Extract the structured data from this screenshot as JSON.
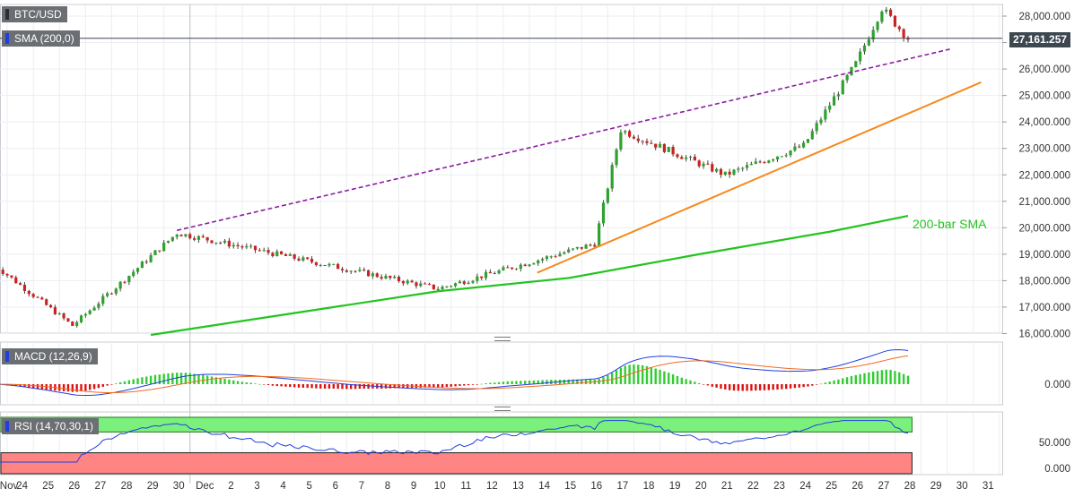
{
  "colors": {
    "candle_up": "#2ea12e",
    "candle_down": "#cc2222",
    "sma_line": "#22c41e",
    "channel_top": "#8a1e9e",
    "support": "#f58a1f",
    "macd_line": "#1f3fe0",
    "signal_line": "#f26b1d",
    "rsi_line": "#1f3fe0",
    "overbought_zone": "#7cf07c",
    "oversold_zone": "#ff8484",
    "price_line": "#3d4750"
  },
  "legend": {
    "symbol": "BTC/USD",
    "sma": "SMA (200,0)",
    "macd": "MACD (12,26,9)",
    "rsi": "RSI (14,70,30,1)"
  },
  "current_price": "27,161.257",
  "sma_annotation": "200-bar SMA",
  "chart_data": [
    {
      "type": "candlestick",
      "title": "BTC/USD",
      "y_ticks": [
        "28,000.000",
        "27,000.000",
        "26,000.000",
        "25,000.000",
        "24,000.000",
        "23,000.000",
        "22,000.000",
        "21,000.000",
        "20,000.000",
        "19,000.000",
        "18,000.000",
        "17,000.000",
        "16,000.000"
      ],
      "ylim": [
        16000,
        28400
      ],
      "x_ticks": [
        "Nov",
        "24",
        "25",
        "26",
        "27",
        "28",
        "29",
        "30",
        "Dec",
        "2",
        "3",
        "4",
        "5",
        "6",
        "7",
        "8",
        "9",
        "10",
        "11",
        "12",
        "13",
        "14",
        "15",
        "16",
        "17",
        "18",
        "19",
        "20",
        "21",
        "22",
        "23",
        "24",
        "25",
        "26",
        "27",
        "28",
        "29",
        "30",
        "31"
      ],
      "key_closes": [
        {
          "date": "Nov 23",
          "close": 18600
        },
        {
          "date": "Nov 26",
          "close": 16300
        },
        {
          "date": "Nov 30",
          "close": 19800
        },
        {
          "date": "Dec 10",
          "close": 17700
        },
        {
          "date": "Dec 16",
          "close": 19400
        },
        {
          "date": "Dec 17",
          "close": 23700
        },
        {
          "date": "Dec 21",
          "close": 22000
        },
        {
          "date": "Dec 24",
          "close": 23100
        },
        {
          "date": "Dec 26",
          "close": 26200
        },
        {
          "date": "Dec 27",
          "close": 28300
        },
        {
          "date": "Dec 28",
          "close": 27161
        }
      ],
      "sma_200": [
        {
          "date": "Nov 29",
          "value": 15950
        },
        {
          "date": "Dec 5",
          "value": 16850
        },
        {
          "date": "Dec 10",
          "value": 17600
        },
        {
          "date": "Dec 15",
          "value": 18100
        },
        {
          "date": "Dec 20",
          "value": 19000
        },
        {
          "date": "Dec 25",
          "value": 19850
        },
        {
          "date": "Dec 28",
          "value": 20450
        }
      ],
      "rising_channel_top": [
        {
          "date": "Nov 30",
          "value": 19900
        },
        {
          "date": "Dec 29.6",
          "value": 26750
        }
      ],
      "support_line": [
        {
          "date": "Dec 13.8",
          "value": 18300
        },
        {
          "date": "Dec 30.8",
          "value": 25500
        }
      ]
    },
    {
      "type": "macd",
      "title": "MACD (12,26,9)",
      "y_ticks": [
        "0.000"
      ]
    },
    {
      "type": "rsi",
      "title": "RSI (14,70,30,1)",
      "y_ticks": [
        "50.000",
        "0.000"
      ],
      "ylim": [
        0,
        100
      ],
      "overbought": 70,
      "oversold": 30
    }
  ]
}
